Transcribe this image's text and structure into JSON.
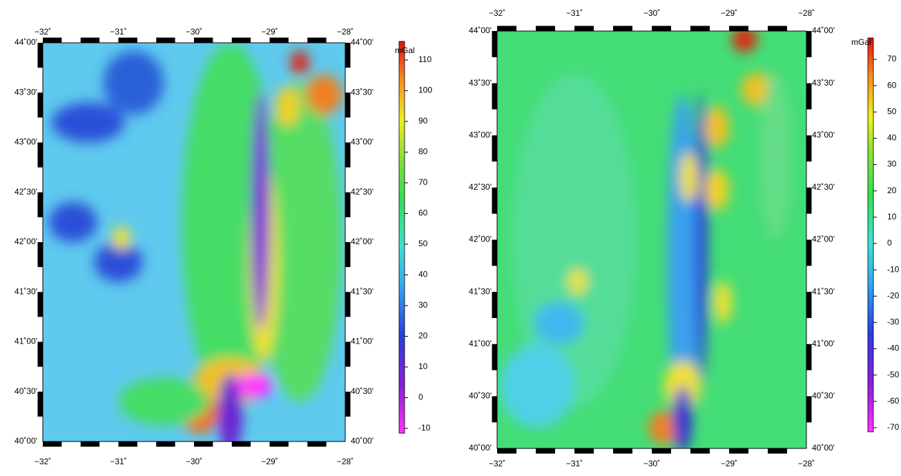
{
  "panels": [
    {
      "lon_labels": [
        "−32˚",
        "−31˚",
        "−30˚",
        "−29˚",
        "−28˚"
      ],
      "lat_labels": [
        "44˚00'",
        "43˚30'",
        "43˚00'",
        "42˚30'",
        "42˚00'",
        "41˚30'",
        "41˚00'",
        "40˚30'",
        "40˚00'"
      ],
      "colorbar": {
        "unit": "mGal",
        "ticks": [
          110,
          100,
          90,
          80,
          70,
          60,
          50,
          40,
          30,
          20,
          10,
          0,
          -10
        ]
      }
    },
    {
      "lon_labels": [
        "−32˚",
        "−31˚",
        "−30˚",
        "−29˚",
        "−28˚"
      ],
      "lat_labels": [
        "44˚00'",
        "43˚30'",
        "43˚00'",
        "42˚30'",
        "42˚00'",
        "41˚30'",
        "41˚00'",
        "40˚30'",
        "40˚00'"
      ],
      "colorbar": {
        "unit": "mGal",
        "ticks": [
          70,
          60,
          50,
          40,
          30,
          20,
          10,
          0,
          -10,
          -20,
          -30,
          -40,
          -50,
          -60,
          -70
        ]
      }
    }
  ]
}
